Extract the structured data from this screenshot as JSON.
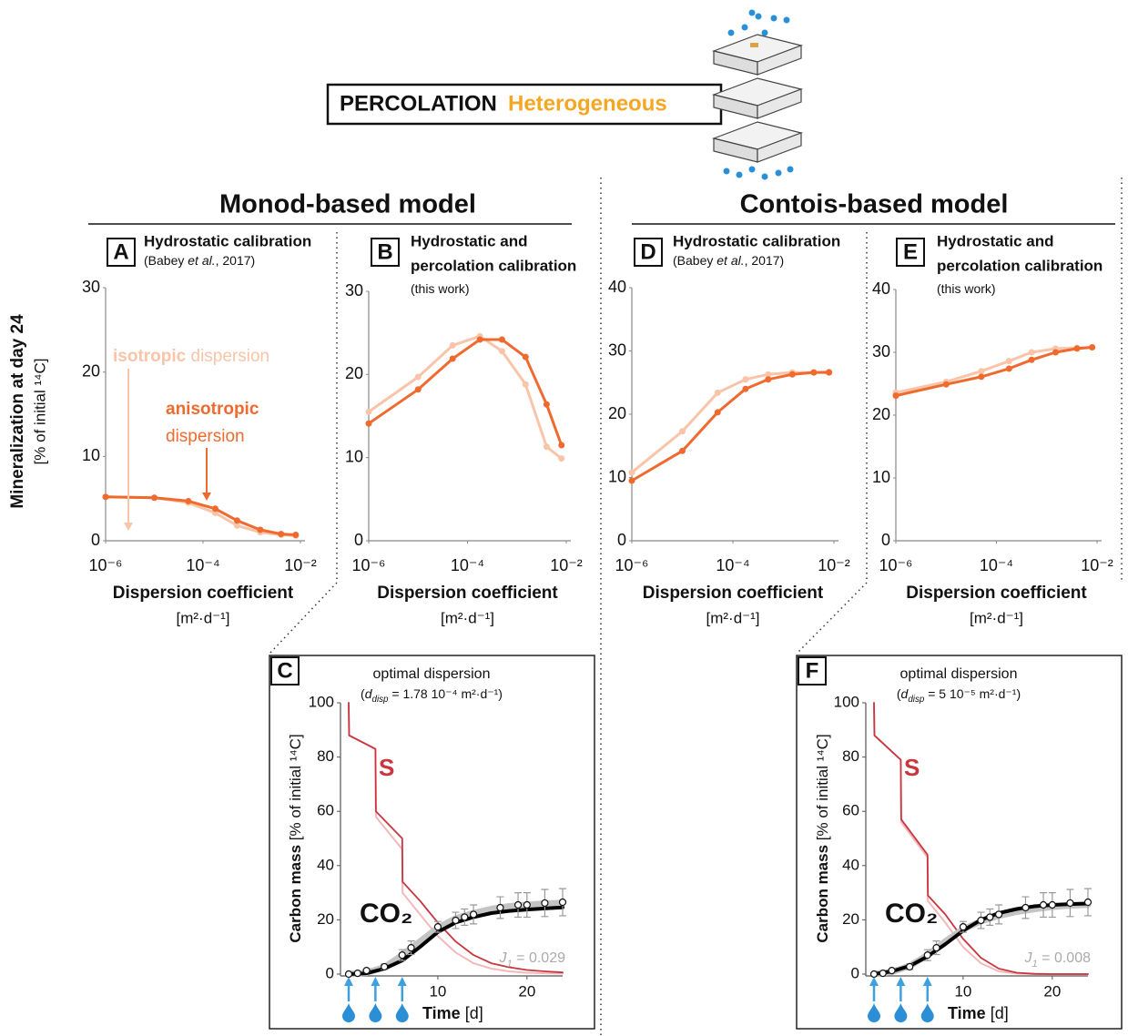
{
  "header": {
    "title": "PERCOLATION",
    "subtitle": "Heterogeneous"
  },
  "sections": [
    "Monod-based model",
    "Contois-based model"
  ],
  "y_label": [
    "Mineralization at day 24",
    "[% of initial ¹⁴C]"
  ],
  "chart_data": [
    {
      "type": "line",
      "panel": "A",
      "title": [
        "Hydrostatic calibration"
      ],
      "note": [
        "(Babey ",
        "et al.",
        ", 2017)"
      ],
      "note_style": [
        "normal",
        "italic",
        "normal"
      ],
      "x_label": "Dispersion coefficient",
      "x_unit": "[m²·d⁻¹]",
      "log_x": true,
      "xlim": [
        1e-06,
        0.01
      ],
      "xticks": [
        {
          "value": 1e-06,
          "label": "10⁻⁶"
        },
        {
          "value": 0.0001,
          "label": "10⁻⁴"
        },
        {
          "value": 0.01,
          "label": "10⁻²"
        }
      ],
      "ylim": [
        0,
        30
      ],
      "yticks": [
        0,
        10,
        20,
        30
      ],
      "x": [
        1e-06,
        1e-05,
        5e-05,
        0.000178,
        0.0005,
        0.0015,
        0.004,
        0.008
      ],
      "series": [
        {
          "color": "#f9c4a8",
          "values": [
            5.2,
            5.1,
            4.5,
            3.3,
            1.8,
            1.0,
            0.7,
            0.6
          ]
        },
        {
          "color": "#ef6a2e",
          "values": [
            5.2,
            5.1,
            4.7,
            3.8,
            2.4,
            1.3,
            0.8,
            0.7
          ]
        }
      ],
      "annotations": [
        {
          "parts": [
            "isotropic",
            " dispersion"
          ],
          "style": [
            "bold",
            "normal"
          ],
          "series": 0
        },
        {
          "parts": [
            "anisotropic"
          ],
          "style": [
            "bold"
          ],
          "series": 1
        },
        {
          "parts": [
            "dispersion"
          ],
          "style": [
            "normal"
          ],
          "series": 1
        }
      ]
    },
    {
      "type": "line",
      "panel": "B",
      "title": [
        "Hydrostatic and",
        "percolation calibration"
      ],
      "note": [
        "(this work)"
      ],
      "note_style": [
        "normal"
      ],
      "x_label": "Dispersion coefficient",
      "x_unit": "[m²·d⁻¹]",
      "log_x": true,
      "xlim": [
        1e-06,
        0.01
      ],
      "xticks": [
        {
          "value": 1e-06,
          "label": "10⁻⁶"
        },
        {
          "value": 0.0001,
          "label": "10⁻⁴"
        },
        {
          "value": 0.01,
          "label": "10⁻²"
        }
      ],
      "ylim": [
        0,
        30
      ],
      "yticks": [
        0,
        10,
        20,
        30
      ],
      "x": [
        1e-06,
        1e-05,
        5e-05,
        0.000178,
        0.0005,
        0.0015,
        0.004,
        0.008
      ],
      "series": [
        {
          "color": "#f9c4a8",
          "values": [
            15.5,
            19.7,
            23.5,
            24.6,
            22.8,
            18.8,
            11.3,
            9.9
          ]
        },
        {
          "color": "#ef6a2e",
          "values": [
            14.1,
            18.2,
            21.9,
            24.2,
            24.2,
            22.1,
            16.4,
            11.5
          ]
        }
      ]
    },
    {
      "type": "timeseries",
      "panel": "C",
      "title": [
        "optimal dispersion"
      ],
      "note": [
        "(",
        "d",
        "disp",
        " = 1.78 10⁻⁴ m²·d⁻¹)"
      ],
      "note_style": [
        "normal",
        "italic",
        "italic-sub",
        "normal"
      ],
      "x_label": [
        "Time",
        " [d]"
      ],
      "x_label_style": [
        "bold",
        "normal"
      ],
      "y_label": [
        "Carbon mass",
        " [% of initial ¹⁴C]"
      ],
      "y_label_style": [
        "bold",
        "normal"
      ],
      "xlim": [
        0,
        24
      ],
      "xticks": [
        10,
        20
      ],
      "ylim": [
        0,
        100
      ],
      "yticks": [
        0,
        20,
        40,
        60,
        80,
        100
      ],
      "amendment_days": [
        0,
        3,
        6
      ],
      "s_label": "S",
      "co2_label": "CO₂",
      "fit": [
        "J",
        "1",
        " = 0.029"
      ],
      "fit_style": [
        "italic",
        "italic-sub",
        "normal"
      ],
      "series": [
        {
          "type": "line",
          "color": "#f2b8bc",
          "x": [
            0,
            0.05,
            3,
            3.05,
            6,
            6.05,
            8,
            10,
            12,
            14,
            16,
            18,
            20,
            22,
            24
          ],
          "values": [
            100,
            88,
            83,
            58,
            46,
            30,
            22,
            14,
            8,
            4,
            2,
            1,
            0.5,
            0.3,
            0.2
          ]
        },
        {
          "type": "line",
          "color": "#c8363e",
          "x": [
            0,
            0.05,
            3,
            3.05,
            6,
            6.05,
            8,
            10,
            12,
            14,
            16,
            18,
            20,
            22,
            24
          ],
          "values": [
            100,
            88,
            83,
            60,
            50,
            34,
            27,
            19,
            12,
            7,
            4,
            2.5,
            1.5,
            1,
            0.6
          ]
        },
        {
          "type": "line",
          "color": "#c4c4c4",
          "x": [
            0,
            2,
            4,
            6,
            8,
            10,
            12,
            14,
            16,
            18,
            20,
            22,
            24
          ],
          "values": [
            0,
            0.5,
            2.5,
            7,
            12,
            17,
            20.5,
            22.5,
            24,
            25,
            25.5,
            26,
            26.2
          ]
        },
        {
          "type": "line",
          "color": "#000000",
          "x": [
            0,
            2,
            4,
            6,
            8,
            10,
            12,
            14,
            16,
            18,
            20,
            22,
            24
          ],
          "values": [
            0,
            0.3,
            2,
            5,
            10,
            15.5,
            19,
            21,
            22.5,
            23.3,
            23.8,
            24.2,
            24.6
          ]
        },
        {
          "type": "scatter",
          "color": "#ffffff",
          "x": [
            0,
            1,
            2,
            4,
            6,
            7,
            10,
            12,
            13,
            14,
            17,
            19,
            20,
            22,
            24
          ],
          "values": [
            0,
            0.3,
            1.3,
            2.7,
            7,
            9.7,
            17.4,
            19.8,
            21,
            22,
            24.5,
            25.5,
            25.5,
            26.2,
            26.5
          ],
          "errors": [
            0,
            0.3,
            0.5,
            1,
            2,
            2.5,
            2,
            3,
            3,
            3.5,
            4,
            4.5,
            4.5,
            5,
            5
          ]
        }
      ]
    },
    {
      "type": "line",
      "panel": "D",
      "title": [
        "Hydrostatic calibration"
      ],
      "note": [
        "(Babey ",
        "et al.",
        ", 2017)"
      ],
      "note_style": [
        "normal",
        "italic",
        "normal"
      ],
      "x_label": "Dispersion coefficient",
      "x_unit": "[m²·d⁻¹]",
      "log_x": true,
      "xlim": [
        1e-06,
        0.01
      ],
      "xticks": [
        {
          "value": 1e-06,
          "label": "10⁻⁶"
        },
        {
          "value": 0.0001,
          "label": "10⁻⁴"
        },
        {
          "value": 0.01,
          "label": "10⁻²"
        }
      ],
      "ylim": [
        0,
        40
      ],
      "yticks": [
        0,
        10,
        20,
        30,
        40
      ],
      "x": [
        1e-06,
        1e-05,
        5e-05,
        0.000178,
        0.0005,
        0.0015,
        0.004,
        0.008
      ],
      "series": [
        {
          "color": "#f9c4a8",
          "values": [
            10.8,
            17.3,
            23.4,
            25.5,
            26.3,
            26.6,
            26.6,
            26.7
          ]
        },
        {
          "color": "#ef6a2e",
          "values": [
            9.5,
            14.2,
            20.3,
            24.0,
            25.5,
            26.3,
            26.6,
            26.6
          ]
        }
      ]
    },
    {
      "type": "line",
      "panel": "E",
      "title": [
        "Hydrostatic and",
        "percolation calibration"
      ],
      "note": [
        "(this work)"
      ],
      "note_style": [
        "normal"
      ],
      "x_label": "Dispersion coefficient",
      "x_unit": "[m²·d⁻¹]",
      "log_x": true,
      "xlim": [
        1e-06,
        0.01
      ],
      "xticks": [
        {
          "value": 1e-06,
          "label": "10⁻⁶"
        },
        {
          "value": 0.0001,
          "label": "10⁻⁴"
        },
        {
          "value": 0.01,
          "label": "10⁻²"
        }
      ],
      "ylim": [
        0,
        40
      ],
      "yticks": [
        0,
        10,
        20,
        30,
        40
      ],
      "x": [
        1e-06,
        1e-05,
        5e-05,
        0.000178,
        0.0005,
        0.0015,
        0.004,
        0.008
      ],
      "series": [
        {
          "color": "#f9c4a8",
          "values": [
            23.6,
            25.3,
            27.0,
            28.6,
            30.0,
            30.6,
            30.7,
            30.8
          ]
        },
        {
          "color": "#ef6a2e",
          "values": [
            23.1,
            24.9,
            26.1,
            27.4,
            28.8,
            30.0,
            30.6,
            30.8
          ]
        }
      ]
    },
    {
      "type": "timeseries",
      "panel": "F",
      "title": [
        "optimal dispersion"
      ],
      "note": [
        "(",
        "d",
        "disp",
        " = 5 10⁻⁵ m²·d⁻¹)"
      ],
      "note_style": [
        "normal",
        "italic",
        "italic-sub",
        "normal"
      ],
      "x_label": [
        "Time",
        " [d]"
      ],
      "x_label_style": [
        "bold",
        "normal"
      ],
      "y_label": [
        "Carbon mass",
        " [% of initial ¹⁴C]"
      ],
      "y_label_style": [
        "bold",
        "normal"
      ],
      "xlim": [
        0,
        24
      ],
      "xticks": [
        10,
        20
      ],
      "ylim": [
        0,
        100
      ],
      "yticks": [
        0,
        20,
        40,
        60,
        80,
        100
      ],
      "amendment_days": [
        0,
        3,
        6
      ],
      "s_label": "S",
      "co2_label": "CO₂",
      "fit": [
        "J",
        "1",
        " = 0.008"
      ],
      "fit_style": [
        "italic",
        "italic-sub",
        "normal"
      ],
      "series": [
        {
          "type": "line",
          "color": "#f2b8bc",
          "x": [
            0,
            0.05,
            3,
            3.05,
            6,
            6.05,
            8,
            10,
            12,
            14,
            16,
            18,
            20,
            22,
            24
          ],
          "values": [
            100,
            88,
            79,
            56,
            43,
            27,
            19,
            10,
            4,
            1,
            0.2,
            0,
            0,
            0,
            0
          ]
        },
        {
          "type": "line",
          "color": "#c8363e",
          "x": [
            0,
            0.05,
            3,
            3.05,
            6,
            6.05,
            8,
            10,
            12,
            14,
            16,
            18,
            20,
            22,
            24
          ],
          "values": [
            100,
            88,
            79,
            57,
            44,
            29,
            22,
            13,
            6,
            2,
            0.5,
            0.1,
            0,
            0,
            0
          ]
        },
        {
          "type": "line",
          "color": "#c4c4c4",
          "x": [
            0,
            2,
            4,
            6,
            8,
            10,
            12,
            14,
            16,
            18,
            20,
            22,
            24
          ],
          "values": [
            0,
            0.8,
            3,
            7,
            12,
            16.5,
            19.5,
            21.5,
            23,
            24,
            24.8,
            25.3,
            25.6
          ]
        },
        {
          "type": "line",
          "color": "#000000",
          "x": [
            0,
            2,
            4,
            6,
            8,
            10,
            12,
            14,
            16,
            18,
            20,
            22,
            24
          ],
          "values": [
            0,
            1,
            3,
            6.5,
            11,
            16,
            20,
            22.5,
            24,
            25,
            25.5,
            25.8,
            26
          ]
        },
        {
          "type": "scatter",
          "color": "#ffffff",
          "x": [
            0,
            1,
            2,
            4,
            6,
            7,
            10,
            12,
            13,
            14,
            17,
            19,
            20,
            22,
            24
          ],
          "values": [
            0,
            0.3,
            1.3,
            2.7,
            7,
            9.7,
            17.4,
            19.8,
            21,
            22,
            24.5,
            25.5,
            25.5,
            26.2,
            26.5
          ],
          "errors": [
            0,
            0.3,
            0.5,
            1,
            2,
            2.5,
            2,
            3,
            3,
            3.5,
            4,
            4.5,
            4.5,
            5,
            5
          ]
        }
      ]
    }
  ]
}
